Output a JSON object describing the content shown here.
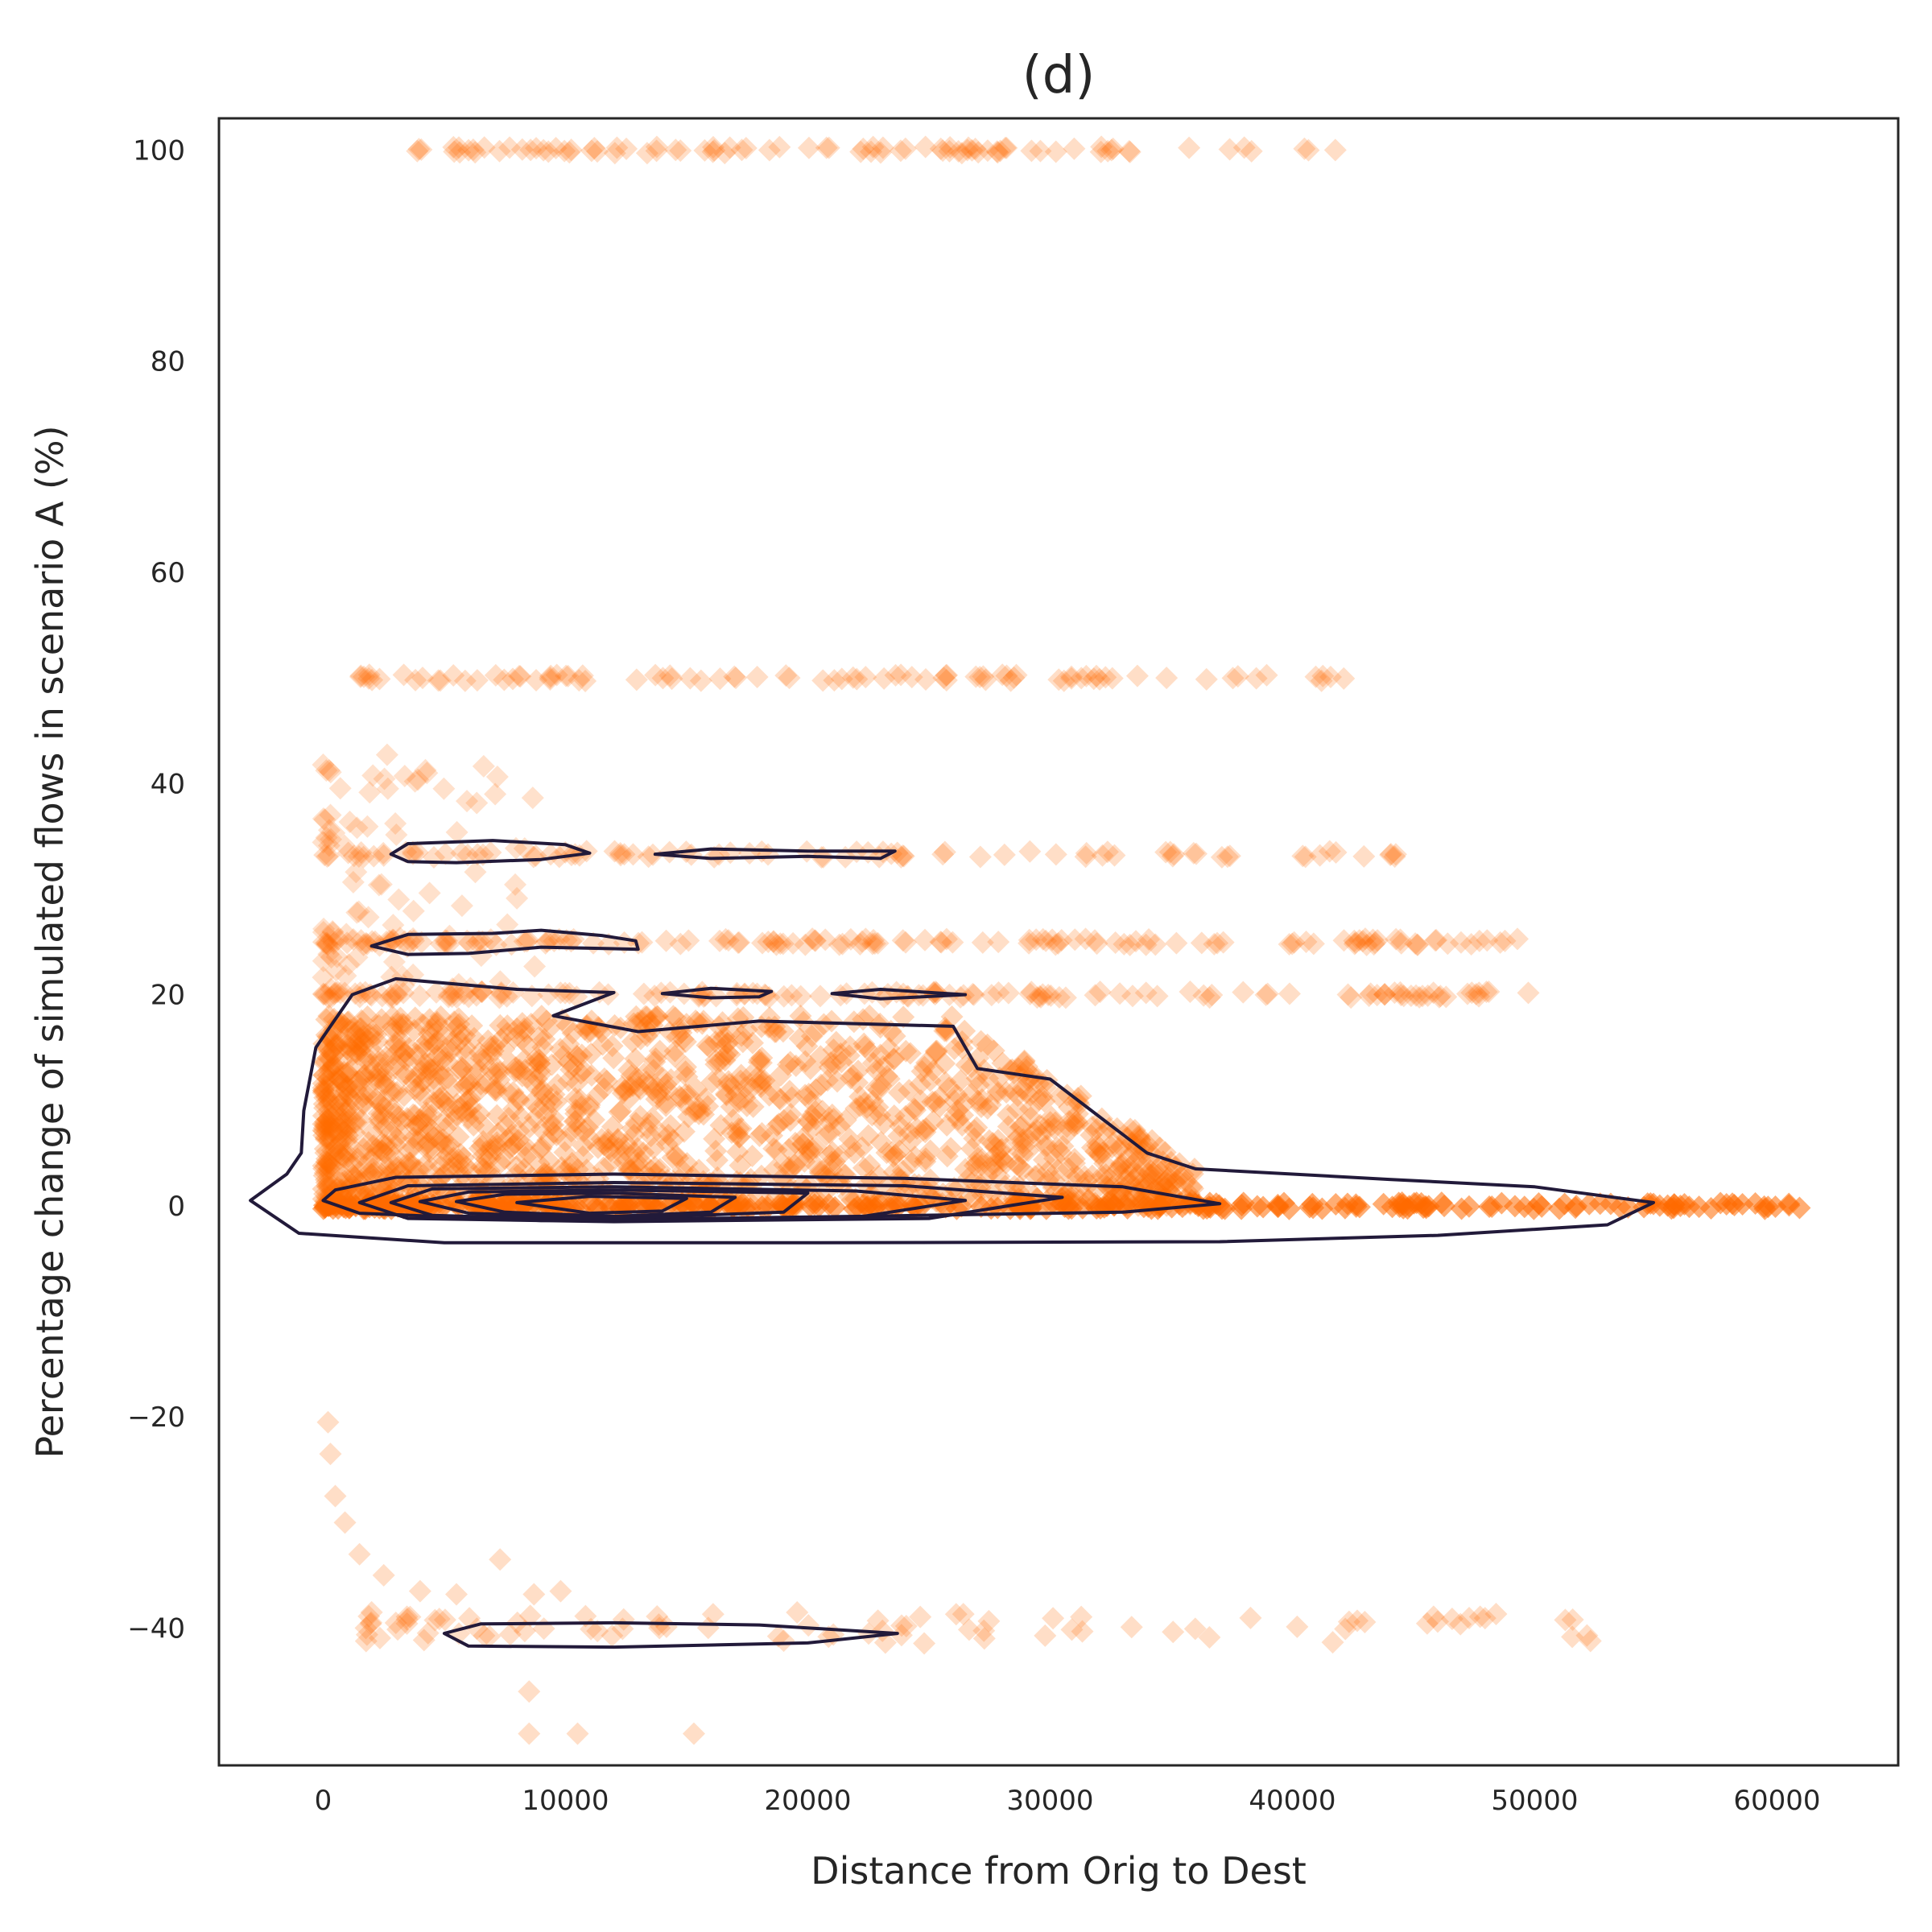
{
  "chart_data": {
    "type": "scatter",
    "title": "(d)",
    "xlabel": "Distance from Orig to Dest",
    "ylabel": "Percentage change of simulated flows in scenario A (%)",
    "xlim": [
      -4300,
      65000
    ],
    "ylim": [
      -53,
      103
    ],
    "xticks": [
      0,
      10000,
      20000,
      30000,
      40000,
      50000,
      60000
    ],
    "yticks": [
      -40,
      -20,
      0,
      20,
      40,
      60,
      80,
      100
    ],
    "xtick_labels": [
      "0",
      "10000",
      "20000",
      "30000",
      "40000",
      "50000",
      "60000"
    ],
    "ytick_labels": [
      "−40",
      "−20",
      "0",
      "20",
      "40",
      "60",
      "80",
      "100"
    ],
    "grid": false,
    "legend": "none",
    "colors": {
      "points": "#ff6a00",
      "contour": "#221a3a",
      "frame": "#262626"
    },
    "marker": "diamond",
    "series": [
      {
        "kind": "scatter-bands",
        "bands": [
          {
            "y": 100,
            "x_range": [
              3800,
              42000
            ]
          },
          {
            "y": 50,
            "x_range": [
              1200,
              42500
            ]
          },
          {
            "y": 33.3,
            "x_range": [
              0,
              46500
            ]
          },
          {
            "y": 25,
            "x_range": [
              0,
              50000
            ]
          },
          {
            "y": 20,
            "x_range": [
              0,
              50000
            ]
          },
          {
            "y": 0,
            "x_range": [
              0,
              61000
            ]
          },
          {
            "y": -40,
            "x_range": [
              1500,
              53000
            ]
          }
        ],
        "dense_region": {
          "x_range": [
            0,
            36000
          ],
          "y_range": [
            0,
            20
          ]
        },
        "negative_tail": [
          [
            200,
            -20.5
          ],
          [
            300,
            -23.5
          ],
          [
            500,
            -27.5
          ],
          [
            900,
            -30
          ],
          [
            1500,
            -33
          ],
          [
            2500,
            -35
          ],
          [
            4000,
            -36.5
          ],
          [
            5500,
            -36.8
          ],
          [
            7300,
            -33.5
          ],
          [
            8700,
            -36.8
          ],
          [
            9800,
            -36.5
          ],
          [
            8500,
            -46
          ],
          [
            8500,
            -50
          ],
          [
            10500,
            -50
          ],
          [
            15300,
            -50
          ],
          [
            2000,
            -38.5
          ],
          [
            3000,
            -39.5
          ]
        ]
      }
    ],
    "density_contours": [
      {
        "level": "outer",
        "points": [
          [
            -3000,
            0.5
          ],
          [
            -1500,
            3
          ],
          [
            -900,
            5
          ],
          [
            -800,
            9
          ],
          [
            -300,
            15
          ],
          [
            300,
            17
          ],
          [
            1200,
            20
          ],
          [
            3000,
            21.5
          ],
          [
            8000,
            20.5
          ],
          [
            12000,
            20.2
          ],
          [
            9500,
            18
          ],
          [
            13000,
            16.5
          ],
          [
            18000,
            17.5
          ],
          [
            26000,
            17
          ],
          [
            27000,
            13
          ],
          [
            30000,
            12
          ],
          [
            34000,
            5
          ],
          [
            36000,
            3.5
          ],
          [
            40000,
            3
          ],
          [
            44000,
            2.5
          ],
          [
            50000,
            1.8
          ],
          [
            54900,
            0.3
          ],
          [
            53000,
            -1.8
          ],
          [
            46000,
            -2.8
          ],
          [
            37000,
            -3.4
          ],
          [
            20000,
            -3.5
          ],
          [
            5000,
            -3.5
          ],
          [
            -1000,
            -2.6
          ],
          [
            -3000,
            0.5
          ]
        ]
      },
      {
        "level": "2",
        "points": [
          [
            0,
            0.5
          ],
          [
            500,
            1.5
          ],
          [
            3000,
            2.7
          ],
          [
            12000,
            3
          ],
          [
            24000,
            2.6
          ],
          [
            33000,
            1.8
          ],
          [
            37000,
            0.2
          ],
          [
            33000,
            -0.6
          ],
          [
            22000,
            -1
          ],
          [
            9000,
            -1.4
          ],
          [
            1500,
            -0.7
          ],
          [
            0,
            0.5
          ]
        ]
      },
      {
        "level": "3",
        "points": [
          [
            1500,
            0.3
          ],
          [
            3500,
            1.9
          ],
          [
            12000,
            2.2
          ],
          [
            24000,
            1.9
          ],
          [
            30500,
            0.8
          ],
          [
            25000,
            -1.2
          ],
          [
            12000,
            -1.5
          ],
          [
            3500,
            -1.2
          ],
          [
            1500,
            0.3
          ]
        ]
      },
      {
        "level": "4",
        "points": [
          [
            2800,
            0.3
          ],
          [
            4500,
            1.6
          ],
          [
            12000,
            1.8
          ],
          [
            22000,
            1.4
          ],
          [
            26500,
            0.5
          ],
          [
            22000,
            -1.1
          ],
          [
            12000,
            -1.4
          ],
          [
            4500,
            -0.9
          ],
          [
            2800,
            0.3
          ]
        ]
      },
      {
        "level": "5",
        "points": [
          [
            4000,
            0.4
          ],
          [
            6000,
            1.3
          ],
          [
            12000,
            1.5
          ],
          [
            20000,
            1.2
          ],
          [
            19000,
            -0.6
          ],
          [
            12000,
            -1.2
          ],
          [
            6000,
            -0.7
          ],
          [
            4000,
            0.4
          ]
        ]
      },
      {
        "level": "6",
        "points": [
          [
            5500,
            0.4
          ],
          [
            7500,
            1.1
          ],
          [
            12000,
            1.2
          ],
          [
            17000,
            0.8
          ],
          [
            16000,
            -0.6
          ],
          [
            12000,
            -1
          ],
          [
            7500,
            -0.6
          ],
          [
            5500,
            0.4
          ]
        ]
      },
      {
        "level": "7",
        "points": [
          [
            8000,
            0.3
          ],
          [
            11000,
            0.9
          ],
          [
            15000,
            0.7
          ],
          [
            14000,
            -0.5
          ],
          [
            11000,
            -0.7
          ],
          [
            8000,
            0.3
          ]
        ]
      },
      {
        "level": "band-33-a",
        "points": [
          [
            2800,
            33.3
          ],
          [
            3500,
            34.3
          ],
          [
            7000,
            34.6
          ],
          [
            10000,
            34.2
          ],
          [
            11000,
            33.4
          ],
          [
            9000,
            32.8
          ],
          [
            5500,
            32.5
          ],
          [
            3500,
            32.6
          ],
          [
            2800,
            33.3
          ]
        ]
      },
      {
        "level": "band-33-b",
        "points": [
          [
            13700,
            33.3
          ],
          [
            16000,
            33.8
          ],
          [
            20000,
            33.6
          ],
          [
            23600,
            33.6
          ],
          [
            23000,
            32.9
          ],
          [
            20000,
            33.1
          ],
          [
            16000,
            32.9
          ],
          [
            13700,
            33.3
          ]
        ]
      },
      {
        "level": "band-25",
        "points": [
          [
            2000,
            24.6
          ],
          [
            3500,
            25.7
          ],
          [
            7000,
            25.8
          ],
          [
            9000,
            26.1
          ],
          [
            11500,
            25.6
          ],
          [
            12900,
            25.1
          ],
          [
            13000,
            24.3
          ],
          [
            9000,
            24.5
          ],
          [
            6000,
            23.9
          ],
          [
            3500,
            23.8
          ],
          [
            2000,
            24.6
          ]
        ]
      },
      {
        "level": "band-20-a",
        "points": [
          [
            14000,
            20.1
          ],
          [
            16000,
            20.6
          ],
          [
            18500,
            20.3
          ],
          [
            18000,
            19.8
          ],
          [
            16000,
            19.7
          ],
          [
            14000,
            20.1
          ]
        ]
      },
      {
        "level": "band-20-b",
        "points": [
          [
            21000,
            20.1
          ],
          [
            23000,
            20.5
          ],
          [
            26500,
            20
          ],
          [
            23000,
            19.6
          ],
          [
            21000,
            20.1
          ]
        ]
      },
      {
        "level": "band-neg40",
        "points": [
          [
            5000,
            -40.5
          ],
          [
            6500,
            -39.6
          ],
          [
            12000,
            -39.5
          ],
          [
            18000,
            -39.7
          ],
          [
            23700,
            -40.5
          ],
          [
            20000,
            -41.4
          ],
          [
            12000,
            -41.8
          ],
          [
            6000,
            -41.7
          ],
          [
            5000,
            -40.5
          ]
        ]
      }
    ]
  }
}
